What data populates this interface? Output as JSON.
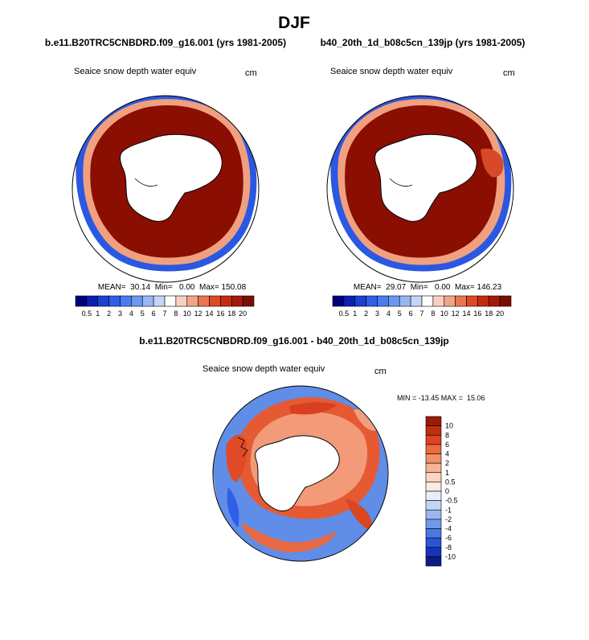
{
  "chart_data": {
    "type": "polar-map",
    "title": "DJF",
    "panels": [
      {
        "case": "b.e11.B20TRC5CNBDRD.f09_g16.001 (yrs 1981-2005)",
        "variable": "Seaice snow depth water equiv",
        "units": "cm",
        "stats": "MEAN=  30.14  Min=   0.00  Max= 150.08",
        "mean": 30.14,
        "min": 0.0,
        "max": 150.08
      },
      {
        "case": "b40_20th_1d_b08c5cn_139jp (yrs 1981-2005)",
        "variable": "Seaice snow depth water equiv",
        "units": "cm",
        "stats": "MEAN=  29.07  Min=   0.00  Max= 146.23",
        "mean": 29.07,
        "min": 0.0,
        "max": 146.23
      },
      {
        "case": "b.e11.B20TRC5CNBDRD.f09_g16.001 - b40_20th_1d_b08c5cn_139jp",
        "variable": "Seaice snow depth water equiv",
        "units": "cm",
        "stats": "MIN = -13.45 MAX =  15.06",
        "min": -13.45,
        "max": 15.06
      }
    ],
    "abs_colorbar": {
      "labels": [
        "0.5",
        "1",
        "2",
        "3",
        "4",
        "5",
        "6",
        "7",
        "8",
        "10",
        "12",
        "14",
        "16",
        "18",
        "20"
      ],
      "colors": [
        "#00007a",
        "#0a1fb4",
        "#1e40d0",
        "#2f5ee8",
        "#4a7cf0",
        "#6d97f2",
        "#98b6f4",
        "#c4d6f7",
        "#ffffff",
        "#f9d1c1",
        "#f3a587",
        "#ec7650",
        "#dd4a26",
        "#c42c12",
        "#a51a08",
        "#7d0d02"
      ]
    },
    "diff_colorbar": {
      "labels": [
        "10",
        "8",
        "6",
        "4",
        "2",
        "1",
        "0.5",
        "0",
        "-0.5",
        "-1",
        "-2",
        "-4",
        "-6",
        "-8",
        "-10"
      ],
      "colors": [
        "#9c1a06",
        "#bf2e10",
        "#dc4420",
        "#ec6a3c",
        "#f39067",
        "#f6b497",
        "#fbd4c2",
        "#fdeae1",
        "#e6eefb",
        "#c2d5f5",
        "#9ab8f0",
        "#7098ea",
        "#4a78e3",
        "#2c55d5",
        "#1634b5",
        "#0a1c8c"
      ]
    }
  }
}
